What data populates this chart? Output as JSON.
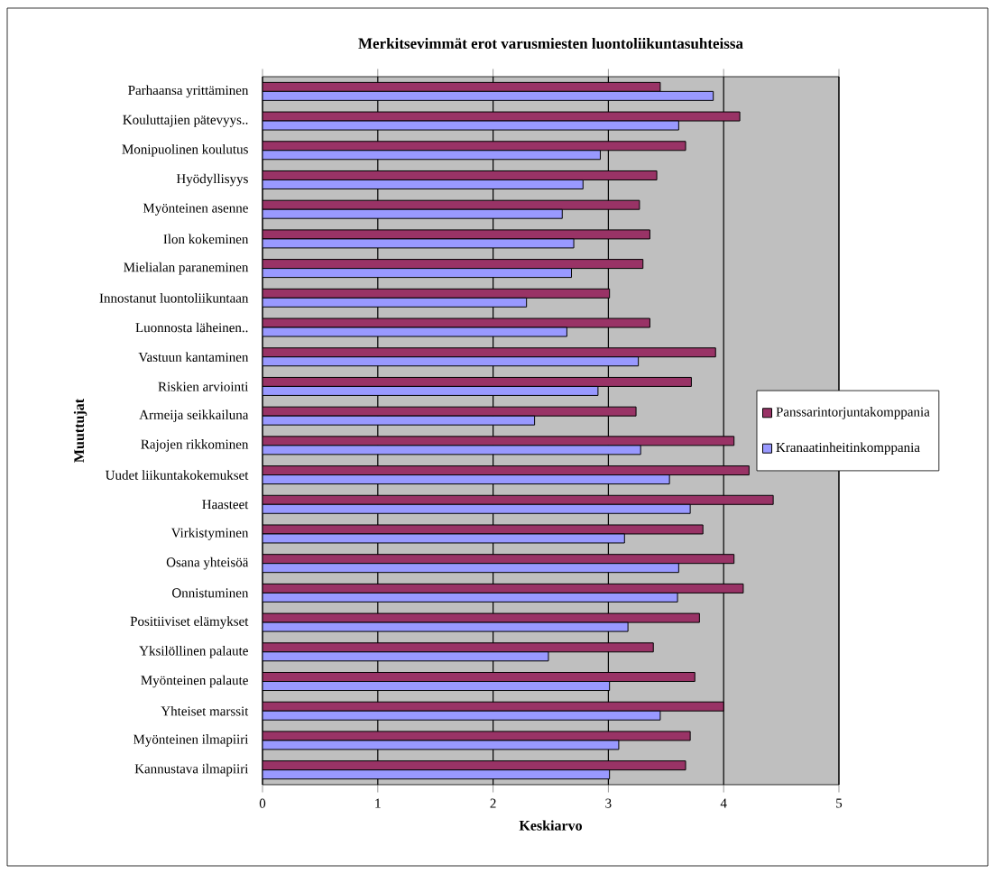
{
  "chart_data": {
    "type": "bar",
    "orientation": "horizontal",
    "title": "Merkitsevimmät erot varusmiesten luontoliikuntasuhteissa",
    "xlabel": "Keskiarvo",
    "ylabel": "Muuttujat",
    "categories": [
      "Parhaansa yrittäminen",
      "Kouluttajien pätevyys..",
      "Monipuolinen koulutus",
      "Hyödyllisyys",
      "Myönteinen asenne",
      "Ilon kokeminen",
      "Mielialan paraneminen",
      "Innostanut luontoliikuntaan",
      "Luonnosta läheinen..",
      "Vastuun kantaminen",
      "Riskien arviointi",
      "Armeija seikkailuna",
      "Rajojen rikkominen",
      "Uudet liikuntakokemukset",
      "Haasteet",
      "Virkistyminen",
      "Osana yhteisöä",
      "Onnistuminen",
      "Positiiviset elämykset",
      "Yksilöllinen palaute",
      "Myönteinen palaute",
      "Yhteiset marssit",
      "Myönteinen ilmapiiri",
      "Kannustava ilmapiiri"
    ],
    "series": [
      {
        "name": "Panssarintorjuntakomppania",
        "color": "#993366",
        "values": [
          3.45,
          4.14,
          3.67,
          3.42,
          3.27,
          3.36,
          3.3,
          3.01,
          3.36,
          3.93,
          3.72,
          3.24,
          4.09,
          4.22,
          4.43,
          3.82,
          4.09,
          4.17,
          3.79,
          3.39,
          3.75,
          4.0,
          3.71,
          3.67
        ]
      },
      {
        "name": "Kranaatinheitinkomppania",
        "color": "#9999ff",
        "values": [
          3.91,
          3.61,
          2.93,
          2.78,
          2.6,
          2.7,
          2.68,
          2.29,
          2.64,
          3.26,
          2.91,
          2.36,
          3.28,
          3.53,
          3.71,
          3.14,
          3.61,
          3.6,
          3.17,
          2.48,
          3.01,
          3.45,
          3.09,
          3.01
        ]
      }
    ],
    "xlim": [
      0,
      5
    ],
    "xticks": [
      0,
      1,
      2,
      3,
      4,
      5
    ],
    "grid": "x",
    "legend": "right"
  }
}
